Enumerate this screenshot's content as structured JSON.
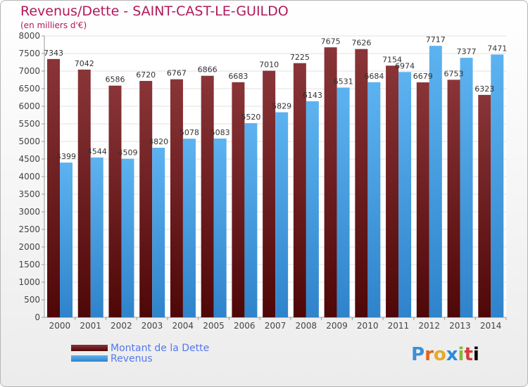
{
  "chart_data": {
    "type": "bar",
    "title": "Revenus/Dette - SAINT-CAST-LE-GUILDO",
    "subtitle": "(en milliers d'€)",
    "categories": [
      "2000",
      "2001",
      "2002",
      "2003",
      "2004",
      "2005",
      "2006",
      "2007",
      "2008",
      "2009",
      "2010",
      "2011",
      "2012",
      "2013",
      "2014"
    ],
    "series": [
      {
        "name": "Montant de la Dette",
        "color": "#7a1a1c",
        "values": [
          7343,
          7042,
          6586,
          6720,
          6767,
          6866,
          6683,
          7010,
          7225,
          7675,
          7626,
          7154,
          6679,
          6753,
          6323
        ]
      },
      {
        "name": "Revenus",
        "color": "#4aa3e6",
        "values": [
          4399,
          4544,
          4509,
          4820,
          5078,
          5083,
          5520,
          5829,
          6143,
          6531,
          6684,
          6974,
          7717,
          7377,
          7471
        ]
      }
    ],
    "ylim": [
      0,
      8000
    ],
    "yticks": [
      0,
      500,
      1000,
      1500,
      2000,
      2500,
      3000,
      3500,
      4000,
      4500,
      5000,
      5500,
      6000,
      6500,
      7000,
      7500,
      8000
    ],
    "grid": true,
    "legend_position": "bottom-left"
  },
  "logo": {
    "letters": [
      "P",
      "r",
      "o",
      "x",
      "i",
      "t",
      "i"
    ]
  }
}
